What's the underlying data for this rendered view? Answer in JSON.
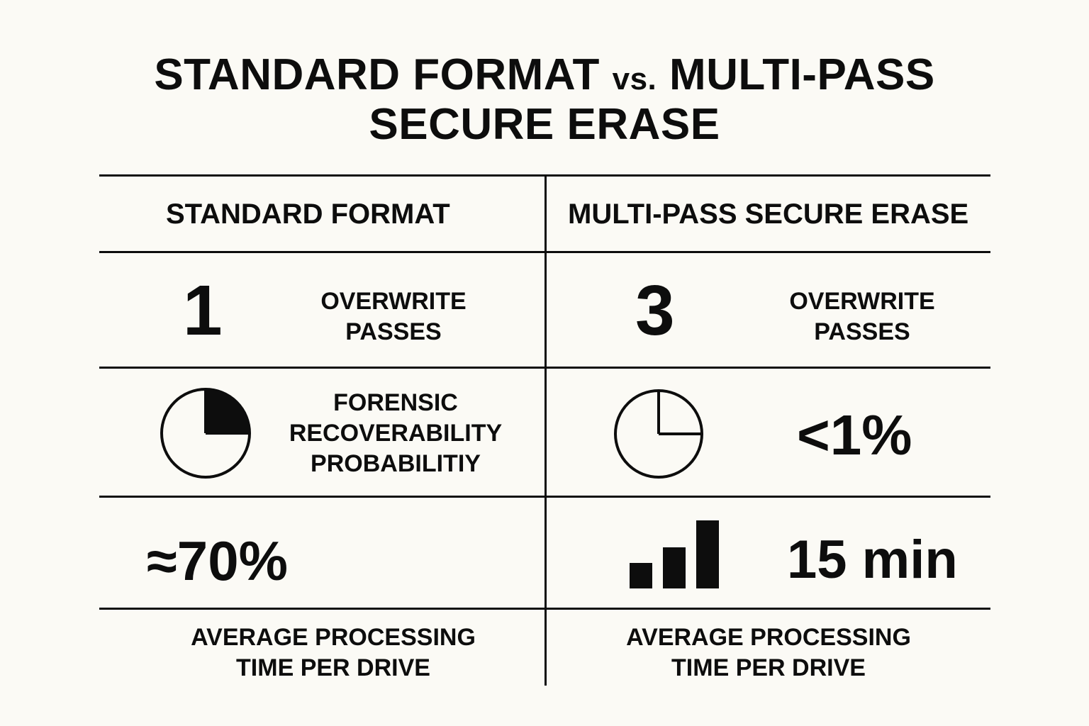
{
  "title": {
    "line1_part1": "STANDARD FORMAT",
    "line1_vs": "vs.",
    "line1_part2": "MULTI-PASS",
    "line2": "SECURE ERASE"
  },
  "columns": {
    "left_header": "STANDARD FORMAT",
    "right_header": "MULTI-PASS SECURE ERASE"
  },
  "passes": {
    "left_value": "1",
    "right_value": "3",
    "label_line1": "OVERWRITE",
    "label_line2": "PASSES"
  },
  "recoverability": {
    "label_line1": "FORENSIC",
    "label_line2": "RECOVERABILITY",
    "label_line3": "PROBABILITIY",
    "left_pie_icon": "pie-chart-quarter-filled-icon",
    "right_pie_icon": "pie-chart-outline-icon",
    "right_value": "<1%"
  },
  "metrics": {
    "left_value": "≈70%",
    "bar_icon": "bar-chart-icon",
    "right_value": "15 min"
  },
  "processing": {
    "label_line1": "AVERAGE PROCESSING",
    "label_line2": "TIME PER DRIVE"
  },
  "colors": {
    "background": "#fbfaf5",
    "ink": "#0d0d0d"
  }
}
